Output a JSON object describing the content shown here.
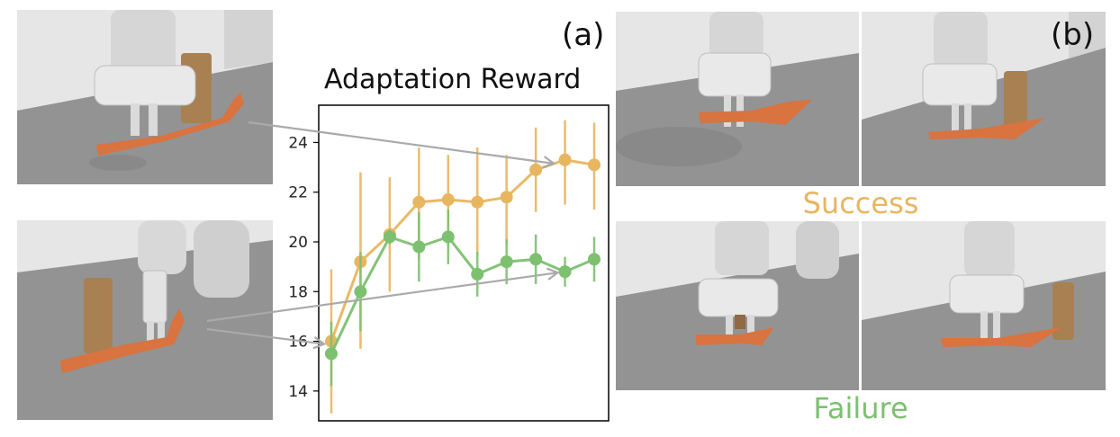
{
  "panel_a_label": "(a)",
  "panel_b_label": "(b)",
  "success_label": "Success",
  "failure_label": "Failure",
  "colors": {
    "success": "#E8B560",
    "failure": "#7CC070",
    "tool": "#D9733F",
    "cylinder": "#A88052",
    "floor": "#939393",
    "wall": "#E6E6E6",
    "arrow": "#AAAAAA"
  },
  "chart_data": {
    "type": "line",
    "title": "Adaptation Reward",
    "xlabel": "",
    "ylabel": "",
    "ylim": [
      12.8,
      25.5
    ],
    "yticks": [
      14,
      16,
      18,
      20,
      22,
      24
    ],
    "grid": false,
    "x": [
      0,
      1,
      2,
      3,
      4,
      5,
      6,
      7,
      8,
      9
    ],
    "series": [
      {
        "color": "#E8B560",
        "values": [
          16.0,
          19.2,
          20.3,
          21.6,
          21.7,
          21.6,
          21.8,
          22.9,
          23.3,
          23.1
        ],
        "err_low": [
          13.1,
          15.7,
          18.0,
          19.3,
          19.8,
          19.5,
          19.9,
          21.2,
          21.5,
          21.3
        ],
        "err_high": [
          18.9,
          22.8,
          22.6,
          23.8,
          23.5,
          23.8,
          23.5,
          24.6,
          24.9,
          24.8
        ]
      },
      {
        "color": "#7CC070",
        "values": [
          15.5,
          18.0,
          20.2,
          19.8,
          20.2,
          18.7,
          19.2,
          19.3,
          18.8,
          19.3
        ],
        "err_low": [
          14.2,
          16.4,
          19.9,
          18.4,
          19.1,
          17.8,
          18.3,
          18.3,
          18.2,
          18.4
        ],
        "err_high": [
          16.8,
          19.6,
          20.5,
          21.2,
          21.3,
          19.6,
          20.1,
          20.3,
          19.4,
          20.2
        ]
      }
    ]
  }
}
